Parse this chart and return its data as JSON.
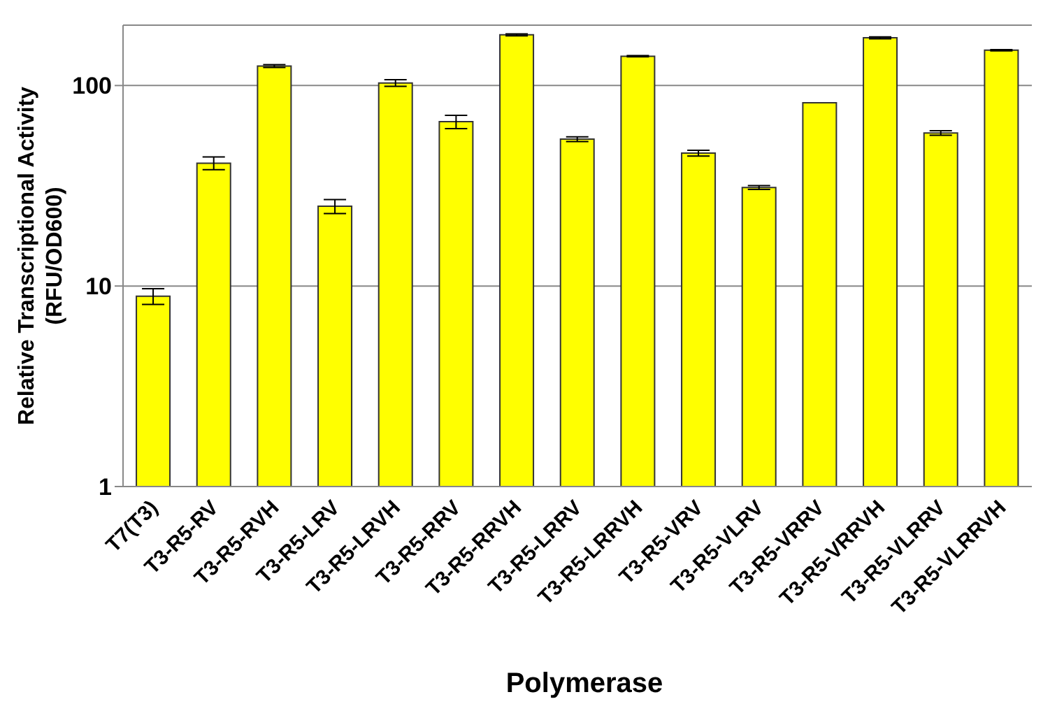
{
  "chart_data": {
    "type": "bar",
    "xlabel": "Polymerase",
    "ylabel": "Relative Transcriptional Activity\n(RFU/OD600)",
    "categories": [
      "T7(T3)",
      "T3-R5-RV",
      "T3-R5-RVH",
      "T3-R5-LRV",
      "T3-R5-LRVH",
      "T3-R5-RRV",
      "T3-R5-RRVH",
      "T3-R5-LRRV",
      "T3-R5-LRRVH",
      "T3-R5-VRV",
      "T3-R5-VLRV",
      "T3-R5-VRRV",
      "T3-R5-VRRVH",
      "T3-R5-VLRRV",
      "T3-R5-VLRRVH"
    ],
    "values": [
      8.9,
      41,
      125,
      25,
      103,
      66,
      179,
      54,
      140,
      46,
      31,
      82,
      173,
      58,
      150
    ],
    "errors": [
      0.8,
      3,
      2,
      2,
      4,
      5,
      2,
      1.5,
      1,
      1.5,
      0.7,
      null,
      2,
      1.5,
      1
    ],
    "color": "#ffff00",
    "log": true,
    "ylim": [
      1,
      200
    ],
    "yticks": [
      1,
      10,
      100
    ],
    "grid": "y"
  }
}
